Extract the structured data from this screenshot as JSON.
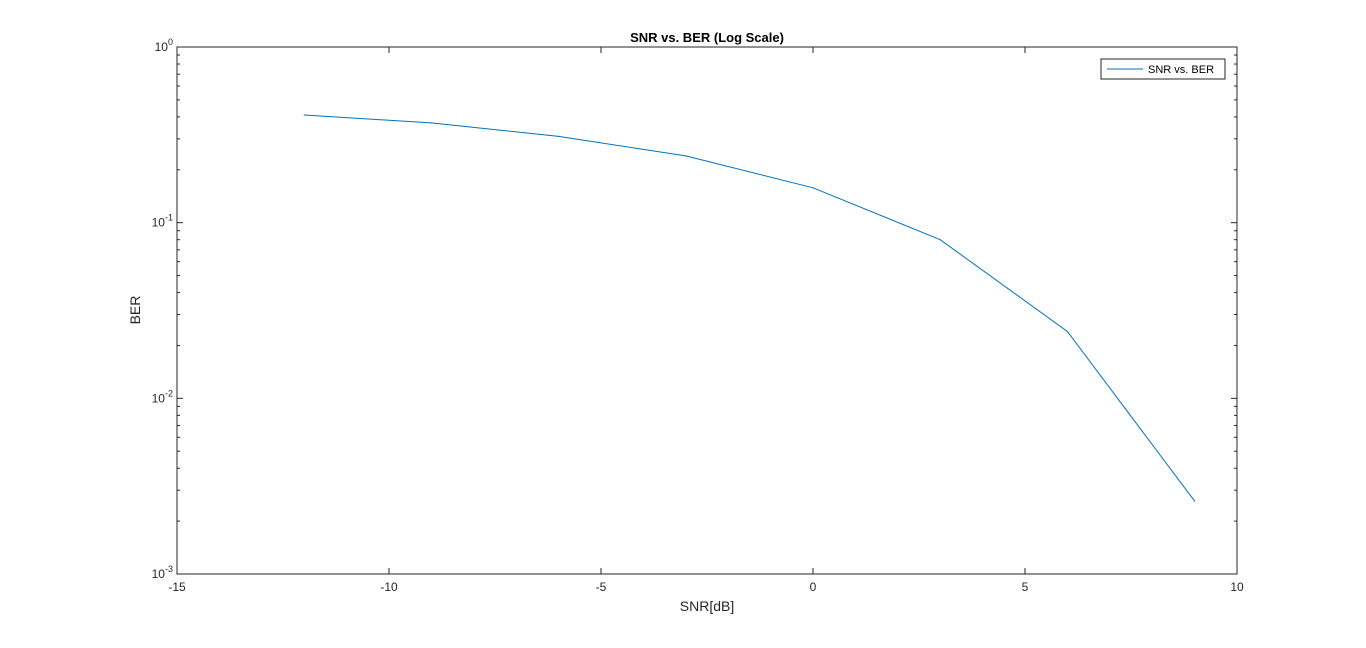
{
  "chart_data": {
    "type": "line",
    "title": "SNR vs. BER (Log Scale)",
    "xlabel": "SNR[dB]",
    "ylabel": "BER",
    "xlim": [
      -15,
      10
    ],
    "ylim": [
      0.001,
      1
    ],
    "yscale": "log",
    "grid": true,
    "minor_grid": true,
    "legend_position": "top-right",
    "x_ticks": [
      -15,
      -10,
      -5,
      0,
      5,
      10
    ],
    "x_tick_labels": [
      "-15",
      "-10",
      "-5",
      "0",
      "5",
      "10"
    ],
    "y_ticks": [
      0.001,
      0.01,
      0.1,
      1
    ],
    "y_tick_labels": [
      {
        "base": "10",
        "exp": "-3"
      },
      {
        "base": "10",
        "exp": "-2"
      },
      {
        "base": "10",
        "exp": "-1"
      },
      {
        "base": "10",
        "exp": "0"
      }
    ],
    "series": [
      {
        "name": "SNR vs. BER",
        "color": "#0072bd",
        "x": [
          -12,
          -9,
          -6,
          -3,
          0,
          3,
          6,
          9
        ],
        "y": [
          0.41,
          0.37,
          0.31,
          0.24,
          0.158,
          0.08,
          0.024,
          0.0026
        ]
      }
    ]
  }
}
